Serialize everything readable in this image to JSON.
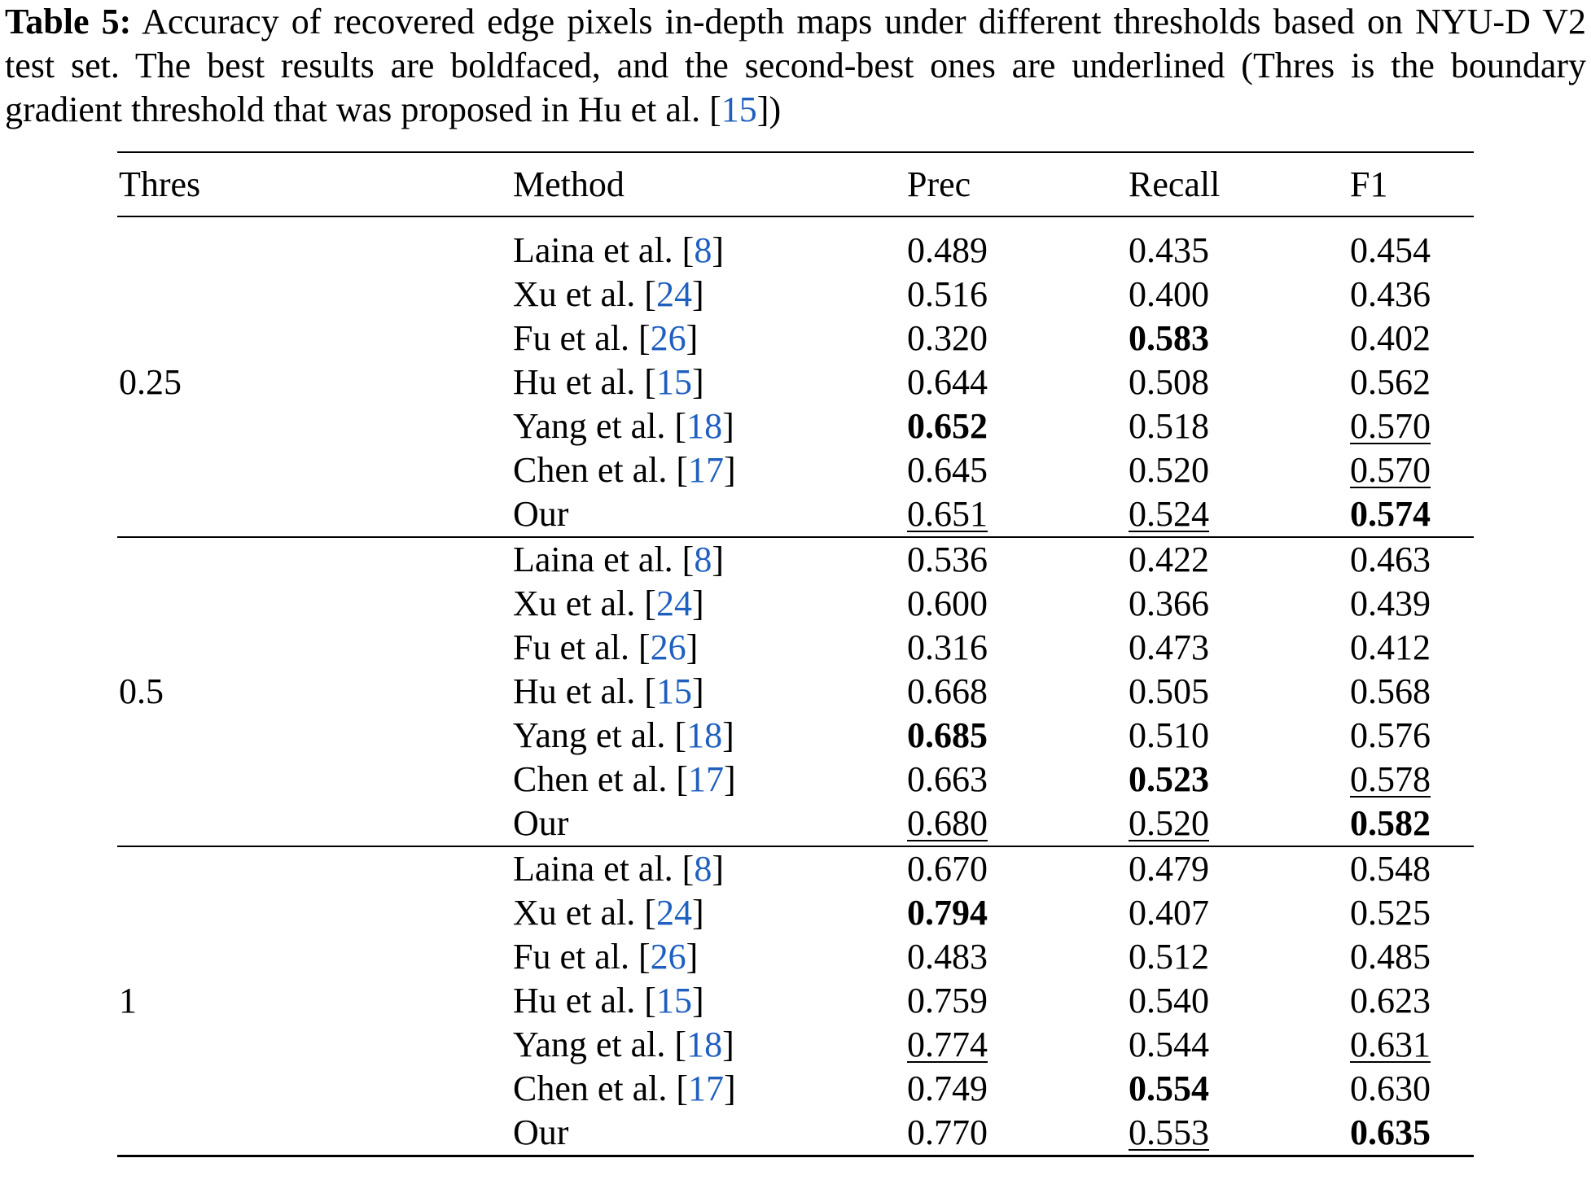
{
  "caption": {
    "label": "Table 5:",
    "text_before_cite": " Accuracy of recovered edge pixels in-depth maps under different thresholds based on NYU-D V2 test set. The best results are boldfaced, and the second-best ones are underlined (Thres is the boundary gradient threshold that was proposed in Hu et al. [",
    "cite": "15",
    "text_after_cite": "])"
  },
  "table": {
    "headers": [
      "Thres",
      "Method",
      "Prec",
      "Recall",
      "F1"
    ],
    "groups": [
      {
        "thres": "0.25",
        "rows": [
          {
            "name": "Laina et al. [",
            "cite": "8",
            "close": "]",
            "prec": "0.489",
            "recall": "0.435",
            "f1": "0.454"
          },
          {
            "name": "Xu et al. [",
            "cite": "24",
            "close": "]",
            "prec": "0.516",
            "recall": "0.400",
            "f1": "0.436"
          },
          {
            "name": "Fu et al. [",
            "cite": "26",
            "close": "]",
            "prec": "0.320",
            "recall": "0.583",
            "f1": "0.402"
          },
          {
            "name": "Hu et al. [",
            "cite": "15",
            "close": "]",
            "prec": "0.644",
            "recall": "0.508",
            "f1": "0.562"
          },
          {
            "name": "Yang et al. [",
            "cite": "18",
            "close": "]",
            "prec": "0.652",
            "recall": "0.518",
            "f1": "0.570"
          },
          {
            "name": "Chen et al. [",
            "cite": "17",
            "close": "]",
            "prec": "0.645",
            "recall": "0.520",
            "f1": "0.570"
          },
          {
            "name": "Our",
            "cite": "",
            "close": "",
            "prec": "0.651",
            "recall": "0.524",
            "f1": "0.574"
          }
        ]
      },
      {
        "thres": "0.5",
        "rows": [
          {
            "name": "Laina et al. [",
            "cite": "8",
            "close": "]",
            "prec": "0.536",
            "recall": "0.422",
            "f1": "0.463"
          },
          {
            "name": "Xu et al. [",
            "cite": "24",
            "close": "]",
            "prec": "0.600",
            "recall": "0.366",
            "f1": "0.439"
          },
          {
            "name": "Fu et al. [",
            "cite": "26",
            "close": "]",
            "prec": "0.316",
            "recall": "0.473",
            "f1": "0.412"
          },
          {
            "name": "Hu et al. [",
            "cite": "15",
            "close": "]",
            "prec": "0.668",
            "recall": "0.505",
            "f1": "0.568"
          },
          {
            "name": "Yang et al. [",
            "cite": "18",
            "close": "]",
            "prec": "0.685",
            "recall": "0.510",
            "f1": "0.576"
          },
          {
            "name": "Chen et al. [",
            "cite": "17",
            "close": "]",
            "prec": "0.663",
            "recall": "0.523",
            "f1": "0.578"
          },
          {
            "name": "Our",
            "cite": "",
            "close": "",
            "prec": "0.680",
            "recall": "0.520",
            "f1": "0.582"
          }
        ]
      },
      {
        "thres": "1",
        "rows": [
          {
            "name": "Laina et al. [",
            "cite": "8",
            "close": "]",
            "prec": "0.670",
            "recall": "0.479",
            "f1": "0.548"
          },
          {
            "name": "Xu et al. [",
            "cite": "24",
            "close": "]",
            "prec": "0.794",
            "recall": "0.407",
            "f1": "0.525"
          },
          {
            "name": "Fu et al. [",
            "cite": "26",
            "close": "]",
            "prec": "0.483",
            "recall": "0.512",
            "f1": "0.485"
          },
          {
            "name": "Hu et al. [",
            "cite": "15",
            "close": "]",
            "prec": "0.759",
            "recall": "0.540",
            "f1": "0.623"
          },
          {
            "name": "Yang et al. [",
            "cite": "18",
            "close": "]",
            "prec": "0.774",
            "recall": "0.544",
            "f1": "0.631"
          },
          {
            "name": "Chen et al. [",
            "cite": "17",
            "close": "]",
            "prec": "0.749",
            "recall": "0.554",
            "f1": "0.630"
          },
          {
            "name": "Our",
            "cite": "",
            "close": "",
            "prec": "0.770",
            "recall": "0.553",
            "f1": "0.635"
          }
        ]
      }
    ]
  },
  "colors": {
    "citation": "#1f5fbf",
    "text": "#000000",
    "background": "#ffffff"
  }
}
